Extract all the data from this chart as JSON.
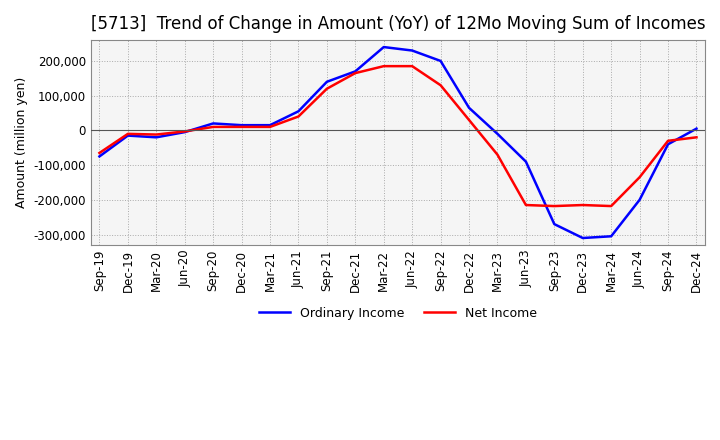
{
  "title": "[5713]  Trend of Change in Amount (YoY) of 12Mo Moving Sum of Incomes",
  "ylabel": "Amount (million yen)",
  "ylim": [
    -330000,
    260000
  ],
  "yticks": [
    -300000,
    -200000,
    -100000,
    0,
    100000,
    200000
  ],
  "x_labels": [
    "Sep-19",
    "Dec-19",
    "Mar-20",
    "Jun-20",
    "Sep-20",
    "Dec-20",
    "Mar-21",
    "Jun-21",
    "Sep-21",
    "Dec-21",
    "Mar-22",
    "Jun-22",
    "Sep-22",
    "Dec-22",
    "Mar-23",
    "Jun-23",
    "Sep-23",
    "Dec-23",
    "Mar-24",
    "Jun-24",
    "Sep-24",
    "Dec-24"
  ],
  "ordinary_income": [
    -75000,
    -15000,
    -20000,
    -5000,
    20000,
    15000,
    15000,
    55000,
    140000,
    170000,
    240000,
    230000,
    200000,
    65000,
    -10000,
    -90000,
    -270000,
    -310000,
    -305000,
    -200000,
    -40000,
    5000
  ],
  "net_income": [
    -65000,
    -10000,
    -12000,
    -3000,
    10000,
    10000,
    10000,
    40000,
    120000,
    165000,
    185000,
    185000,
    130000,
    30000,
    -70000,
    -215000,
    -218000,
    -215000,
    -218000,
    -135000,
    -30000,
    -20000
  ],
  "ordinary_color": "#0000ff",
  "net_color": "#ff0000",
  "line_width": 1.8,
  "background_color": "#ffffff",
  "plot_bg_color": "#f5f5f5",
  "grid_color": "#aaaaaa",
  "zeroline_color": "#555555",
  "legend_labels": [
    "Ordinary Income",
    "Net Income"
  ],
  "title_fontsize": 12,
  "label_fontsize": 9,
  "tick_fontsize": 8.5
}
